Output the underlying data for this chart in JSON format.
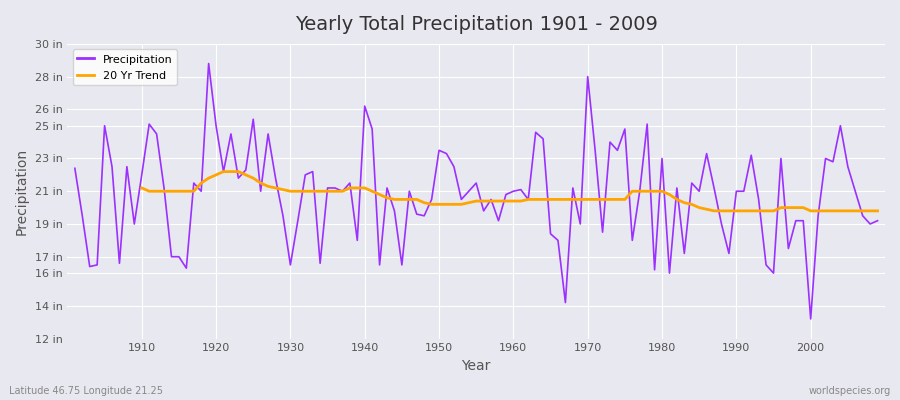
{
  "title": "Yearly Total Precipitation 1901 - 2009",
  "xlabel": "Year",
  "ylabel": "Precipitation",
  "x_label_bottom_left": "Latitude 46.75 Longitude 21.25",
  "x_label_bottom_right": "worldspecies.org",
  "ylim": [
    12,
    30
  ],
  "yticks": [
    12,
    14,
    16,
    17,
    19,
    21,
    23,
    25,
    26,
    28,
    30
  ],
  "ytick_labels": [
    "12 in",
    "14 in",
    "16 in",
    "17 in",
    "19 in",
    "21 in",
    "23 in",
    "25 in",
    "26 in",
    "28 in",
    "30 in"
  ],
  "xticks": [
    1910,
    1920,
    1930,
    1940,
    1950,
    1960,
    1970,
    1980,
    1990,
    2000
  ],
  "precip_color": "#9B30FF",
  "trend_color": "#FFA500",
  "background_color": "#E8E8F0",
  "plot_bg_color": "#E8E8F0",
  "legend_labels": [
    "Precipitation",
    "20 Yr Trend"
  ],
  "years": [
    1901,
    1902,
    1903,
    1904,
    1905,
    1906,
    1907,
    1908,
    1909,
    1910,
    1911,
    1912,
    1913,
    1914,
    1915,
    1916,
    1917,
    1918,
    1919,
    1920,
    1921,
    1922,
    1923,
    1924,
    1925,
    1926,
    1927,
    1928,
    1929,
    1930,
    1931,
    1932,
    1933,
    1934,
    1935,
    1936,
    1937,
    1938,
    1939,
    1940,
    1941,
    1942,
    1943,
    1944,
    1945,
    1946,
    1947,
    1948,
    1949,
    1950,
    1951,
    1952,
    1953,
    1954,
    1955,
    1956,
    1957,
    1958,
    1959,
    1960,
    1961,
    1962,
    1963,
    1964,
    1965,
    1966,
    1967,
    1968,
    1969,
    1970,
    1971,
    1972,
    1973,
    1974,
    1975,
    1976,
    1977,
    1978,
    1979,
    1980,
    1981,
    1982,
    1983,
    1984,
    1985,
    1986,
    1987,
    1988,
    1989,
    1990,
    1991,
    1992,
    1993,
    1994,
    1995,
    1996,
    1997,
    1998,
    1999,
    2000,
    2001,
    2002,
    2003,
    2004,
    2005,
    2006,
    2007,
    2008,
    2009
  ],
  "precip": [
    22.4,
    19.5,
    16.4,
    16.5,
    25.0,
    22.5,
    16.6,
    22.5,
    19.0,
    22.0,
    25.1,
    24.5,
    21.2,
    17.0,
    17.0,
    16.3,
    21.5,
    21.0,
    28.8,
    25.0,
    22.2,
    24.5,
    21.8,
    22.3,
    25.4,
    21.0,
    24.5,
    21.8,
    19.5,
    16.5,
    19.2,
    22.0,
    22.2,
    16.6,
    21.2,
    21.2,
    21.0,
    21.5,
    18.0,
    26.2,
    24.8,
    16.5,
    21.2,
    19.8,
    16.5,
    21.0,
    19.6,
    19.5,
    20.5,
    23.5,
    23.3,
    22.5,
    20.5,
    21.0,
    21.5,
    19.8,
    20.5,
    19.2,
    20.8,
    21.0,
    21.1,
    20.5,
    24.6,
    24.2,
    18.4,
    18.0,
    14.2,
    21.2,
    19.0,
    28.0,
    23.5,
    18.5,
    24.0,
    23.5,
    24.8,
    18.0,
    21.0,
    25.1,
    16.2,
    23.0,
    16.0,
    21.2,
    17.2,
    21.5,
    21.0,
    23.3,
    21.2,
    19.0,
    17.2,
    21.0,
    21.0,
    23.2,
    20.5,
    16.5,
    16.0,
    23.0,
    17.5,
    19.2,
    19.2,
    13.2,
    19.5,
    23.0,
    22.8,
    25.0,
    22.5,
    21.0,
    19.5,
    19.0,
    19.2
  ],
  "trend": [
    null,
    null,
    null,
    null,
    null,
    null,
    null,
    null,
    null,
    21.2,
    21.0,
    21.0,
    21.0,
    21.0,
    21.0,
    21.0,
    21.0,
    21.5,
    21.8,
    22.0,
    22.2,
    22.2,
    22.2,
    22.0,
    21.8,
    21.5,
    21.3,
    21.2,
    21.1,
    21.0,
    21.0,
    21.0,
    21.0,
    21.0,
    21.0,
    21.0,
    21.0,
    21.2,
    21.2,
    21.2,
    21.0,
    20.8,
    20.6,
    20.5,
    20.5,
    20.5,
    20.5,
    20.3,
    20.2,
    20.2,
    20.2,
    20.2,
    20.2,
    20.3,
    20.4,
    20.4,
    20.4,
    20.4,
    20.4,
    20.4,
    20.4,
    20.5,
    20.5,
    20.5,
    20.5,
    20.5,
    20.5,
    20.5,
    20.5,
    20.5,
    20.5,
    20.5,
    20.5,
    20.5,
    20.5,
    21.0,
    21.0,
    21.0,
    21.0,
    21.0,
    20.8,
    20.5,
    20.3,
    20.2,
    20.0,
    19.9,
    19.8,
    19.8,
    19.8,
    19.8,
    19.8,
    19.8,
    19.8,
    19.8,
    19.8,
    20.0,
    20.0,
    20.0,
    20.0,
    19.8,
    19.8,
    19.8,
    19.8,
    19.8,
    19.8,
    19.8,
    19.8,
    19.8,
    19.8
  ]
}
